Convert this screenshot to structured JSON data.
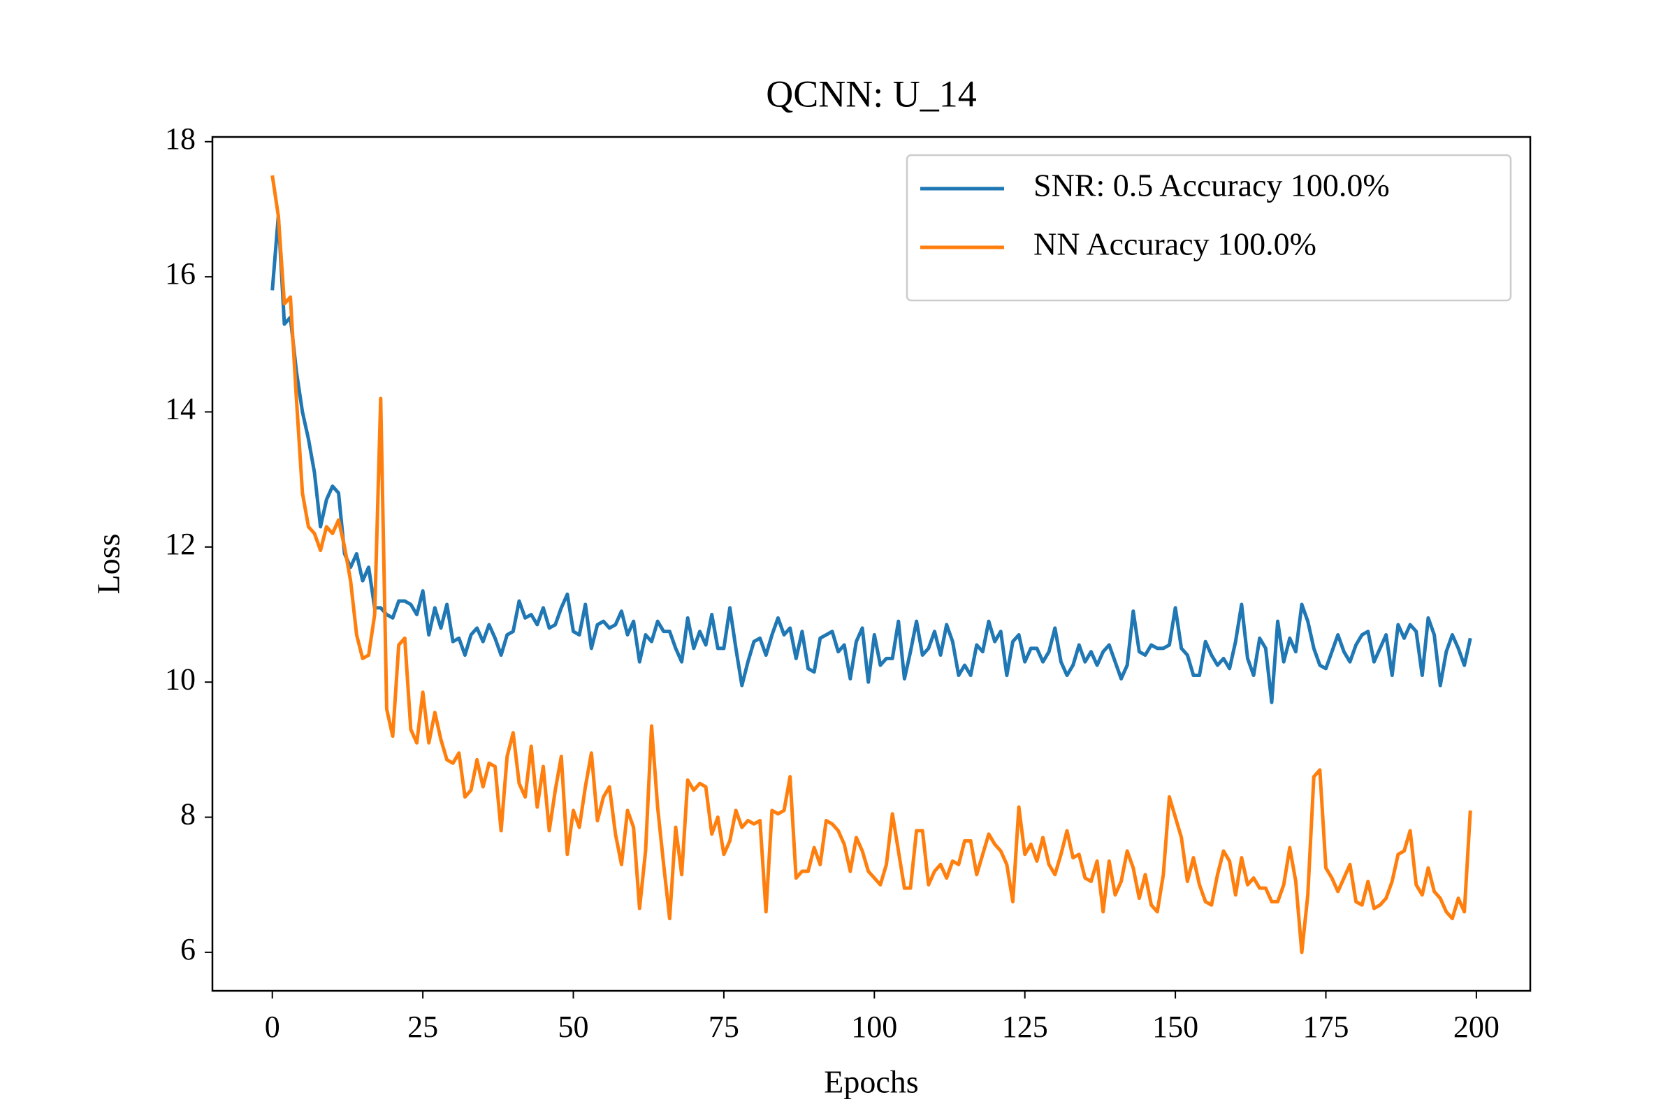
{
  "chart_data": {
    "type": "line",
    "title": "QCNN: U_14",
    "xlabel": "Epochs",
    "ylabel": "Loss",
    "x": [
      0,
      1,
      2,
      3,
      4,
      5,
      6,
      7,
      8,
      9,
      10,
      11,
      12,
      13,
      14,
      15,
      16,
      17,
      18,
      19,
      20,
      21,
      22,
      23,
      24,
      25,
      26,
      27,
      28,
      29,
      30,
      31,
      32,
      33,
      34,
      35,
      36,
      37,
      38,
      39,
      40,
      41,
      42,
      43,
      44,
      45,
      46,
      47,
      48,
      49,
      50,
      51,
      52,
      53,
      54,
      55,
      56,
      57,
      58,
      59,
      60,
      61,
      62,
      63,
      64,
      65,
      66,
      67,
      68,
      69,
      70,
      71,
      72,
      73,
      74,
      75,
      76,
      77,
      78,
      79,
      80,
      81,
      82,
      83,
      84,
      85,
      86,
      87,
      88,
      89,
      90,
      91,
      92,
      93,
      94,
      95,
      96,
      97,
      98,
      99,
      100,
      101,
      102,
      103,
      104,
      105,
      106,
      107,
      108,
      109,
      110,
      111,
      112,
      113,
      114,
      115,
      116,
      117,
      118,
      119,
      120,
      121,
      122,
      123,
      124,
      125,
      126,
      127,
      128,
      129,
      130,
      131,
      132,
      133,
      134,
      135,
      136,
      137,
      138,
      139,
      140,
      141,
      142,
      143,
      144,
      145,
      146,
      147,
      148,
      149,
      150,
      151,
      152,
      153,
      154,
      155,
      156,
      157,
      158,
      159,
      160,
      161,
      162,
      163,
      164,
      165,
      166,
      167,
      168,
      169,
      170,
      171,
      172,
      173,
      174,
      175,
      176,
      177,
      178,
      179,
      180,
      181,
      182,
      183,
      184,
      185,
      186,
      187,
      188,
      189,
      190,
      191,
      192,
      193,
      194,
      195,
      196,
      197,
      198,
      199
    ],
    "series": [
      {
        "name": "SNR: 0.5 Accuracy 100.0%",
        "color": "#1f77b4",
        "values": [
          15.8,
          16.9,
          15.3,
          15.4,
          14.6,
          14.0,
          13.6,
          13.1,
          12.3,
          12.7,
          12.9,
          12.8,
          11.9,
          11.7,
          11.9,
          11.5,
          11.7,
          11.1,
          11.1,
          11.0,
          10.95,
          11.2,
          11.2,
          11.15,
          11.0,
          11.35,
          10.7,
          11.1,
          10.8,
          11.15,
          10.6,
          10.65,
          10.4,
          10.7,
          10.8,
          10.6,
          10.85,
          10.65,
          10.4,
          10.7,
          10.75,
          11.2,
          10.95,
          11.0,
          10.85,
          11.1,
          10.8,
          10.85,
          11.1,
          11.3,
          10.75,
          10.7,
          11.15,
          10.5,
          10.85,
          10.9,
          10.8,
          10.85,
          11.05,
          10.7,
          10.9,
          10.3,
          10.7,
          10.6,
          10.9,
          10.75,
          10.75,
          10.5,
          10.3,
          10.95,
          10.5,
          10.75,
          10.55,
          11.0,
          10.5,
          10.5,
          11.1,
          10.5,
          9.95,
          10.3,
          10.6,
          10.65,
          10.4,
          10.7,
          10.95,
          10.7,
          10.8,
          10.35,
          10.75,
          10.2,
          10.15,
          10.65,
          10.7,
          10.75,
          10.45,
          10.55,
          10.05,
          10.6,
          10.8,
          10.0,
          10.7,
          10.25,
          10.35,
          10.35,
          10.9,
          10.05,
          10.45,
          10.9,
          10.4,
          10.5,
          10.75,
          10.4,
          10.85,
          10.6,
          10.1,
          10.25,
          10.1,
          10.55,
          10.45,
          10.9,
          10.6,
          10.75,
          10.1,
          10.6,
          10.7,
          10.3,
          10.5,
          10.5,
          10.3,
          10.45,
          10.8,
          10.3,
          10.1,
          10.25,
          10.55,
          10.3,
          10.45,
          10.25,
          10.45,
          10.55,
          10.3,
          10.05,
          10.25,
          11.05,
          10.45,
          10.4,
          10.55,
          10.5,
          10.5,
          10.55,
          11.1,
          10.5,
          10.4,
          10.1,
          10.1,
          10.6,
          10.4,
          10.25,
          10.35,
          10.2,
          10.6,
          11.15,
          10.35,
          10.1,
          10.65,
          10.5,
          9.7,
          10.9,
          10.3,
          10.65,
          10.45,
          11.15,
          10.9,
          10.5,
          10.25,
          10.2,
          10.45,
          10.7,
          10.45,
          10.3,
          10.55,
          10.7,
          10.75,
          10.3,
          10.5,
          10.7,
          10.1,
          10.85,
          10.65,
          10.85,
          10.75,
          10.1,
          10.95,
          10.7,
          9.95,
          10.45,
          10.7,
          10.5,
          10.25,
          10.65
        ]
      },
      {
        "name": "NN Accuracy 100.0%",
        "color": "#ff7f0e",
        "values": [
          17.5,
          16.9,
          15.6,
          15.7,
          14.2,
          12.8,
          12.3,
          12.2,
          11.95,
          12.3,
          12.2,
          12.4,
          12.0,
          11.5,
          10.7,
          10.35,
          10.4,
          11.0,
          14.2,
          9.6,
          9.2,
          10.55,
          10.65,
          9.3,
          9.1,
          9.85,
          9.1,
          9.55,
          9.15,
          8.85,
          8.8,
          8.95,
          8.3,
          8.4,
          8.85,
          8.45,
          8.8,
          8.75,
          7.8,
          8.9,
          9.25,
          8.5,
          8.3,
          9.05,
          8.15,
          8.75,
          7.8,
          8.4,
          8.9,
          7.45,
          8.1,
          7.85,
          8.45,
          8.95,
          7.95,
          8.3,
          8.45,
          7.75,
          7.3,
          8.1,
          7.85,
          6.65,
          7.5,
          9.35,
          8.15,
          7.3,
          6.5,
          7.85,
          7.15,
          8.55,
          8.4,
          8.5,
          8.45,
          7.75,
          8.0,
          7.45,
          7.65,
          8.1,
          7.85,
          7.95,
          7.9,
          7.95,
          6.6,
          8.1,
          8.05,
          8.1,
          8.6,
          7.1,
          7.2,
          7.2,
          7.55,
          7.3,
          7.95,
          7.9,
          7.8,
          7.6,
          7.2,
          7.7,
          7.5,
          7.2,
          7.1,
          7.0,
          7.3,
          8.05,
          7.5,
          6.95,
          6.95,
          7.8,
          7.8,
          7.0,
          7.2,
          7.3,
          7.1,
          7.35,
          7.3,
          7.65,
          7.65,
          7.15,
          7.45,
          7.75,
          7.6,
          7.5,
          7.3,
          6.75,
          8.15,
          7.45,
          7.6,
          7.35,
          7.7,
          7.3,
          7.15,
          7.45,
          7.8,
          7.4,
          7.45,
          7.1,
          7.05,
          7.35,
          6.6,
          7.35,
          6.85,
          7.05,
          7.5,
          7.25,
          6.8,
          7.15,
          6.7,
          6.6,
          7.15,
          8.3,
          8.0,
          7.7,
          7.05,
          7.4,
          7.0,
          6.75,
          6.7,
          7.15,
          7.5,
          7.35,
          6.85,
          7.4,
          7.0,
          7.1,
          6.95,
          6.95,
          6.75,
          6.75,
          7.0,
          7.55,
          7.05,
          6.0,
          6.85,
          8.6,
          8.7,
          7.25,
          7.1,
          6.9,
          7.1,
          7.3,
          6.75,
          6.7,
          7.05,
          6.65,
          6.7,
          6.8,
          7.05,
          7.45,
          7.5,
          7.8,
          7.0,
          6.85,
          7.25,
          6.9,
          6.8,
          6.6,
          6.5,
          6.8,
          6.6,
          8.1
        ]
      }
    ],
    "xlim": [
      -9.95,
      208.95
    ],
    "ylim": [
      5.43,
      18.07
    ],
    "xticks": [
      0,
      25,
      50,
      75,
      100,
      125,
      150,
      175,
      200
    ],
    "yticks": [
      6,
      8,
      10,
      12,
      14,
      16,
      18
    ],
    "grid": false,
    "legend": "upper right"
  }
}
